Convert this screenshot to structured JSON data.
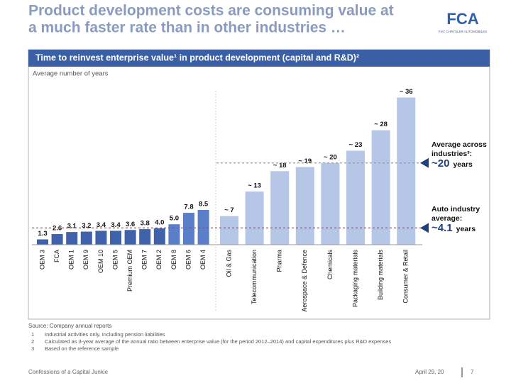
{
  "header": {
    "title_lines": [
      "Product development costs are consuming value at",
      "a much faster rate than in other industries …"
    ],
    "logo": "FCA",
    "logo_sub": "FIAT CHRYSLER AUTOMOBILES"
  },
  "chart_data": {
    "type": "bar",
    "title": "Time to reinvest enterprise value¹ in product development (capital and R&D)²",
    "subtitle": "Average number of years",
    "categories": [
      "OEM 3",
      "FCA",
      "OEM 1",
      "OEM 9",
      "OEM 10",
      "OEM 5",
      "Premium OEM",
      "OEM 7",
      "OEM 2",
      "OEM 8",
      "OEM 6",
      "OEM 4",
      "Oil & Gas",
      "Telecommunication",
      "Pharma",
      "Aerospace & Defence",
      "Chemicals",
      "Packaging materials",
      "Building materials",
      "Consumer & Retail"
    ],
    "values": [
      1.3,
      2.6,
      3.1,
      3.2,
      3.4,
      3.4,
      3.6,
      3.8,
      4.0,
      5.0,
      7.8,
      8.5,
      7,
      13,
      18,
      19,
      20,
      23,
      28,
      36
    ],
    "value_labels": [
      "1.3",
      "2.6",
      "3.1",
      "3.2",
      "3.4",
      "3.4",
      "3.6",
      "3.8",
      "4.0",
      "5.0",
      "7.8",
      "8.5",
      "~ 7",
      "~ 13",
      "~ 18",
      "~ 19",
      "~ 20",
      "~ 23",
      "~ 28",
      "~ 36"
    ],
    "colors": [
      "#3f62ab",
      "#3f62ab",
      "#3f62ab",
      "#3f62ab",
      "#3f62ab",
      "#3f62ab",
      "#3f62ab",
      "#3f62ab",
      "#3f62ab",
      "#5a7fc8",
      "#5a7fc8",
      "#5a7fc8",
      "#b5c6e7",
      "#b5c6e7",
      "#b5c6e7",
      "#b5c6e7",
      "#b5c6e7",
      "#b5c6e7",
      "#b5c6e7",
      "#b5c6e7"
    ],
    "ylim": [
      0,
      38
    ],
    "reference_lines": [
      {
        "value": 20,
        "label": "~20",
        "unit": "years",
        "text": "Average across industries³:",
        "color": "#999999"
      },
      {
        "value": 4.1,
        "label": "~4.1",
        "unit": "years",
        "text": "Auto industry average:",
        "color": "#d9343a"
      }
    ]
  },
  "source": "Source: Company annual reports",
  "footnotes": [
    {
      "num": "1",
      "text": "Industrial activities only. Including pension liabilities"
    },
    {
      "num": "2",
      "text": "Calculated as 3-year average of the annual ratio between enterprise value (for the period 2012–2014) and capital expenditures plus R&D expenses"
    },
    {
      "num": "3",
      "text": "Based on the reference sample"
    }
  ],
  "footer": {
    "left": "Confessions of a Capital Junkie",
    "date": "April 29, 20",
    "page": "7"
  }
}
